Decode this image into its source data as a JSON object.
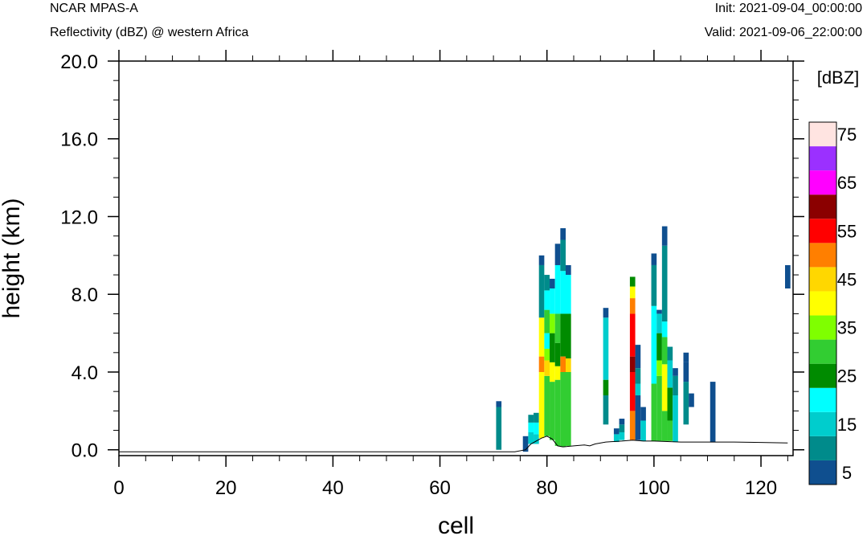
{
  "header": {
    "left_title": "NCAR MPAS-A",
    "left_subtitle": "Reflectivity (dBZ) @ western Africa",
    "right_init": "Init: 2021-09-04_00:00:00",
    "right_valid": "Valid: 2021-09-06_22:00:00"
  },
  "chart_data": {
    "type": "heatmap",
    "xlabel": "cell",
    "ylabel": "height (km)",
    "xlim": [
      0,
      126
    ],
    "ylim": [
      0,
      20
    ],
    "x_ticks": [
      "0",
      "20",
      "40",
      "60",
      "80",
      "100",
      "120"
    ],
    "y_ticks": [
      "0.0",
      "4.0",
      "8.0",
      "12.0",
      "16.0",
      "20.0"
    ],
    "colorbar": {
      "title": "[dBZ]",
      "levels": [
        5,
        10,
        15,
        20,
        25,
        30,
        35,
        40,
        45,
        50,
        55,
        60,
        65,
        70,
        75
      ],
      "colors": [
        "#0f4f8f",
        "#008b8b",
        "#00cdcd",
        "#00ffff",
        "#008b00",
        "#32cd32",
        "#7fff00",
        "#ffff00",
        "#ffd700",
        "#ff7f00",
        "#ff0000",
        "#8b0000",
        "#ff00ff",
        "#9b30ff",
        "#ffe4e1"
      ],
      "labels": [
        "5",
        "15",
        "25",
        "35",
        "45",
        "55",
        "65",
        "75"
      ]
    },
    "terrain": [
      [
        0,
        -0.1
      ],
      [
        74,
        -0.1
      ],
      [
        76,
        0.0
      ],
      [
        77,
        0.3
      ],
      [
        79,
        0.6
      ],
      [
        80,
        0.7
      ],
      [
        81,
        0.55
      ],
      [
        82,
        0.2
      ],
      [
        83,
        0.15
      ],
      [
        85,
        0.2
      ],
      [
        87,
        0.25
      ],
      [
        88,
        0.2
      ],
      [
        89,
        0.3
      ],
      [
        91,
        0.4
      ],
      [
        94,
        0.45
      ],
      [
        96,
        0.5
      ],
      [
        98,
        0.45
      ],
      [
        100,
        0.45
      ],
      [
        105,
        0.4
      ],
      [
        110,
        0.4
      ],
      [
        115,
        0.4
      ],
      [
        120,
        0.38
      ],
      [
        125,
        0.35
      ]
    ],
    "columns": [
      {
        "x": 71,
        "segs": [
          [
            0,
            2.2,
            10
          ],
          [
            2.2,
            2.5,
            5
          ]
        ]
      },
      {
        "x": 76,
        "segs": [
          [
            -0.1,
            0.7,
            5
          ]
        ]
      },
      {
        "x": 77,
        "segs": [
          [
            0.3,
            0.9,
            15
          ],
          [
            0.9,
            1.4,
            20
          ],
          [
            1.4,
            1.8,
            10
          ]
        ]
      },
      {
        "x": 78,
        "segs": [
          [
            0.3,
            0.8,
            15
          ],
          [
            0.8,
            1.4,
            20
          ],
          [
            1.4,
            1.9,
            10
          ]
        ]
      },
      {
        "x": 79,
        "segs": [
          [
            0.6,
            4.0,
            40
          ],
          [
            4.0,
            4.8,
            50
          ],
          [
            4.8,
            6.8,
            40
          ],
          [
            6.8,
            9.5,
            10
          ],
          [
            9.5,
            10.0,
            5
          ]
        ]
      },
      {
        "x": 80,
        "segs": [
          [
            0.7,
            3.8,
            30
          ],
          [
            3.8,
            4.6,
            45
          ],
          [
            4.6,
            5.2,
            35
          ],
          [
            5.2,
            6.0,
            20
          ],
          [
            6.0,
            7.2,
            30
          ],
          [
            7.2,
            8.2,
            20
          ],
          [
            8.2,
            9.0,
            10
          ]
        ]
      },
      {
        "x": 81,
        "segs": [
          [
            0.5,
            3.5,
            30
          ],
          [
            3.5,
            4.5,
            40
          ],
          [
            4.5,
            6.0,
            25
          ],
          [
            6.0,
            7.0,
            35
          ],
          [
            7.0,
            8.3,
            20
          ],
          [
            8.3,
            8.8,
            5
          ]
        ]
      },
      {
        "x": 82,
        "segs": [
          [
            0.2,
            3.6,
            30
          ],
          [
            3.6,
            4.3,
            40
          ],
          [
            4.3,
            5.5,
            25
          ],
          [
            5.5,
            7.0,
            30
          ],
          [
            7.0,
            9.5,
            20
          ],
          [
            9.5,
            10.6,
            5
          ]
        ]
      },
      {
        "x": 83,
        "segs": [
          [
            0.15,
            4.0,
            30
          ],
          [
            4.0,
            4.8,
            50
          ],
          [
            4.8,
            7.0,
            25
          ],
          [
            7.0,
            9.2,
            20
          ],
          [
            9.2,
            10.8,
            10
          ],
          [
            10.8,
            11.4,
            5
          ]
        ]
      },
      {
        "x": 84,
        "segs": [
          [
            0.2,
            4.0,
            30
          ],
          [
            4.0,
            4.7,
            45
          ],
          [
            4.7,
            7.0,
            25
          ],
          [
            7.0,
            9.0,
            20
          ],
          [
            9.0,
            9.5,
            5
          ]
        ]
      },
      {
        "x": 91,
        "segs": [
          [
            1.3,
            2.8,
            10
          ],
          [
            2.8,
            3.6,
            25
          ],
          [
            3.6,
            6.8,
            15
          ],
          [
            6.8,
            7.3,
            5
          ]
        ]
      },
      {
        "x": 93,
        "segs": [
          [
            0.4,
            0.8,
            15
          ],
          [
            0.8,
            1.1,
            5
          ]
        ]
      },
      {
        "x": 94,
        "segs": [
          [
            0.5,
            0.9,
            15
          ],
          [
            0.9,
            1.3,
            10
          ],
          [
            1.3,
            1.6,
            5
          ]
        ]
      },
      {
        "x": 96,
        "segs": [
          [
            0.5,
            2.0,
            50
          ],
          [
            2.0,
            4.0,
            55
          ],
          [
            4.0,
            4.8,
            60
          ],
          [
            4.8,
            7.0,
            55
          ],
          [
            7.0,
            7.8,
            50
          ],
          [
            7.8,
            8.4,
            40
          ],
          [
            8.4,
            8.9,
            25
          ]
        ]
      },
      {
        "x": 97,
        "segs": [
          [
            0.5,
            2.8,
            5
          ],
          [
            2.8,
            3.4,
            15
          ],
          [
            3.4,
            4.2,
            10
          ],
          [
            4.2,
            5.4,
            5
          ]
        ]
      },
      {
        "x": 98,
        "segs": [
          [
            0.45,
            1.5,
            15
          ],
          [
            1.5,
            2.2,
            5
          ]
        ]
      },
      {
        "x": 100,
        "segs": [
          [
            0.45,
            3.4,
            30
          ],
          [
            3.4,
            7.4,
            20
          ],
          [
            7.4,
            9.5,
            10
          ],
          [
            9.5,
            10.1,
            5
          ]
        ]
      },
      {
        "x": 101,
        "segs": [
          [
            0.45,
            3.8,
            30
          ],
          [
            3.8,
            4.6,
            35
          ],
          [
            4.6,
            6.0,
            25
          ],
          [
            6.0,
            7.0,
            15
          ],
          [
            7.0,
            7.2,
            5
          ]
        ]
      },
      {
        "x": 102,
        "segs": [
          [
            0.45,
            2.0,
            30
          ],
          [
            2.0,
            4.4,
            40
          ],
          [
            4.4,
            5.8,
            30
          ],
          [
            5.8,
            6.6,
            20
          ],
          [
            6.6,
            10.5,
            10
          ],
          [
            10.5,
            11.5,
            5
          ]
        ]
      },
      {
        "x": 103,
        "segs": [
          [
            0.45,
            1.5,
            30
          ],
          [
            1.5,
            3.2,
            25
          ],
          [
            3.2,
            4.6,
            15
          ],
          [
            4.6,
            5.3,
            10
          ]
        ]
      },
      {
        "x": 104,
        "segs": [
          [
            0.4,
            2.8,
            15
          ],
          [
            2.8,
            3.8,
            10
          ],
          [
            3.8,
            4.2,
            5
          ]
        ]
      },
      {
        "x": 106,
        "segs": [
          [
            1.3,
            3.5,
            10
          ],
          [
            3.5,
            4.5,
            5
          ],
          [
            4.5,
            5.0,
            5
          ]
        ]
      },
      {
        "x": 107,
        "segs": [
          [
            2.2,
            2.9,
            5
          ]
        ]
      },
      {
        "x": 111,
        "segs": [
          [
            0.4,
            3.5,
            5
          ]
        ]
      },
      {
        "x": 125,
        "segs": [
          [
            8.3,
            9.5,
            5
          ]
        ]
      }
    ]
  }
}
